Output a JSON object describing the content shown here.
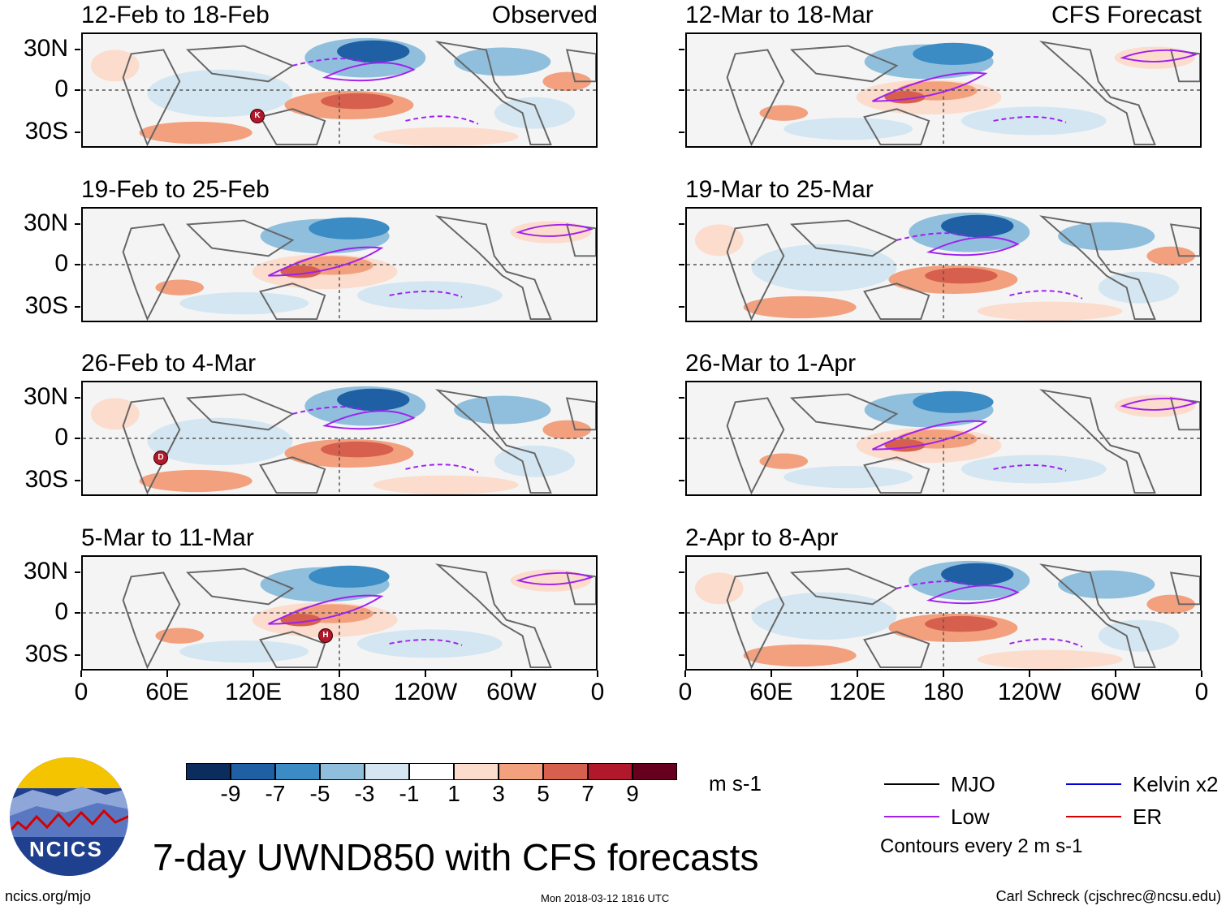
{
  "headers": {
    "left": "Observed",
    "right": "CFS Forecast"
  },
  "panels_left": [
    {
      "title": "12-Feb to 18-Feb"
    },
    {
      "title": "19-Feb to 25-Feb"
    },
    {
      "title": "26-Feb to 4-Mar"
    },
    {
      "title": "5-Mar to 11-Mar"
    }
  ],
  "panels_right": [
    {
      "title": "12-Mar to 18-Mar"
    },
    {
      "title": "19-Mar to 25-Mar"
    },
    {
      "title": "26-Mar to 1-Apr"
    },
    {
      "title": "2-Apr to 8-Apr"
    }
  ],
  "y_axis": {
    "labels": [
      "30N",
      "0",
      "30S"
    ]
  },
  "x_axis": {
    "labels": [
      "0",
      "60E",
      "120E",
      "180",
      "120W",
      "60W",
      "0"
    ]
  },
  "storm_markers": [
    {
      "panel": 1,
      "letter": "K"
    },
    {
      "panel": 3,
      "letter": "D"
    },
    {
      "panel": 4,
      "letter": "H"
    }
  ],
  "colorbar": {
    "unit": "m s-1",
    "labels": [
      "-9",
      "-7",
      "-5",
      "-3",
      "-1",
      "1",
      "3",
      "5",
      "7",
      "9"
    ],
    "colors": [
      "#0b2d5e",
      "#1f5fa3",
      "#3b8bc4",
      "#8fbfdd",
      "#d4e6f1",
      "#ffffff",
      "#fcdccc",
      "#f2a07e",
      "#d6604d",
      "#b2182b",
      "#67001f"
    ]
  },
  "legend": {
    "items": [
      {
        "label": "MJO",
        "color": "#000000"
      },
      {
        "label": "Kelvin x2",
        "color": "#0000dd"
      },
      {
        "label": "Low",
        "color": "#a020f0"
      },
      {
        "label": "ER",
        "color": "#d40000"
      }
    ],
    "note": "Contours every 2 m s-1"
  },
  "main_title": "7-day UWND850 with CFS forecasts",
  "logo": {
    "text": "NCICS"
  },
  "footer": {
    "url": "ncics.org/mjo",
    "timestamp": "Mon 2018-03-12 1816 UTC",
    "author": "Carl Schreck (cjschrec@ncsu.edu)"
  }
}
